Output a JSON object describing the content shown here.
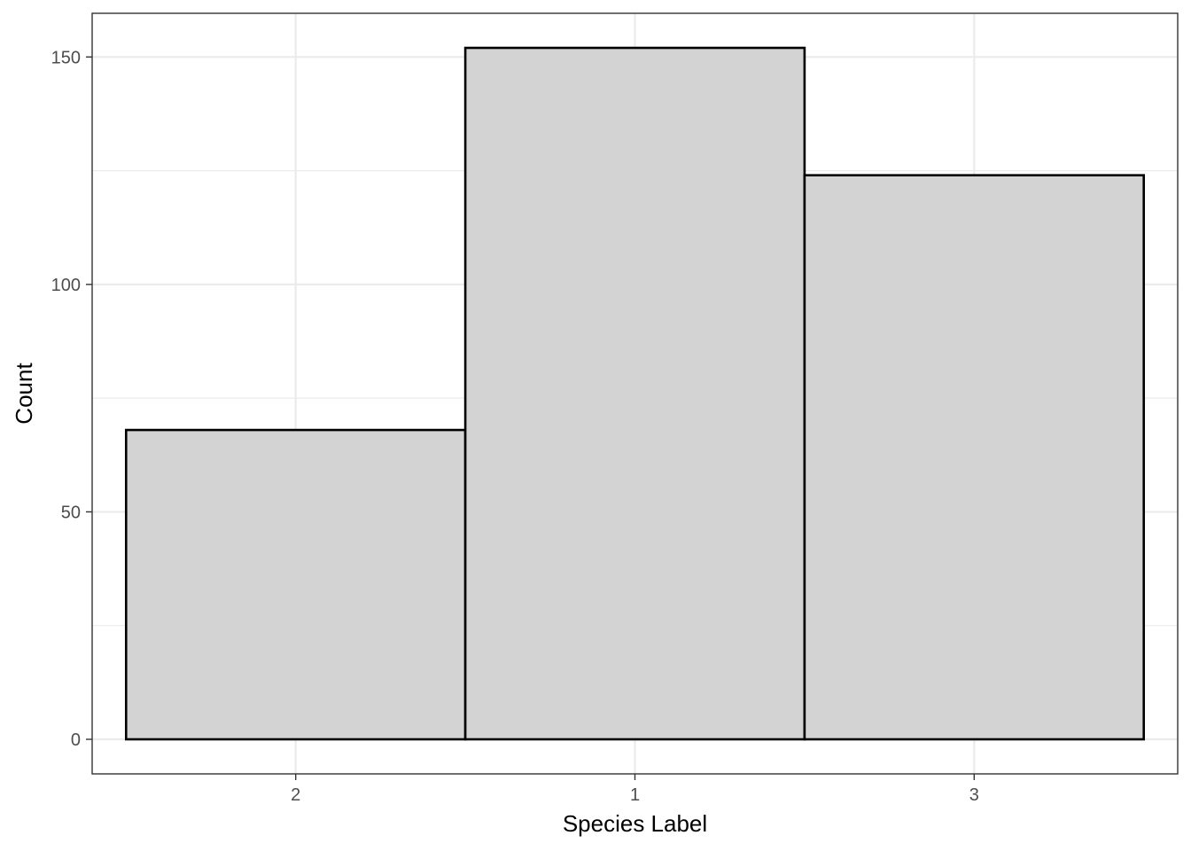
{
  "chart_data": {
    "type": "bar",
    "categories": [
      "2",
      "1",
      "3"
    ],
    "values": [
      68,
      152,
      124
    ],
    "title": "",
    "xlabel": "Species Label",
    "ylabel": "Count",
    "ylim": [
      -7.6,
      159.6
    ],
    "yticks": [
      0,
      50,
      100,
      150
    ],
    "grid": true,
    "colors": {
      "bar_fill": "#d3d3d3",
      "bar_stroke": "#000000",
      "grid": "#ebebeb",
      "panel_border": "#333333",
      "tick_text": "#4d4d4d"
    }
  }
}
